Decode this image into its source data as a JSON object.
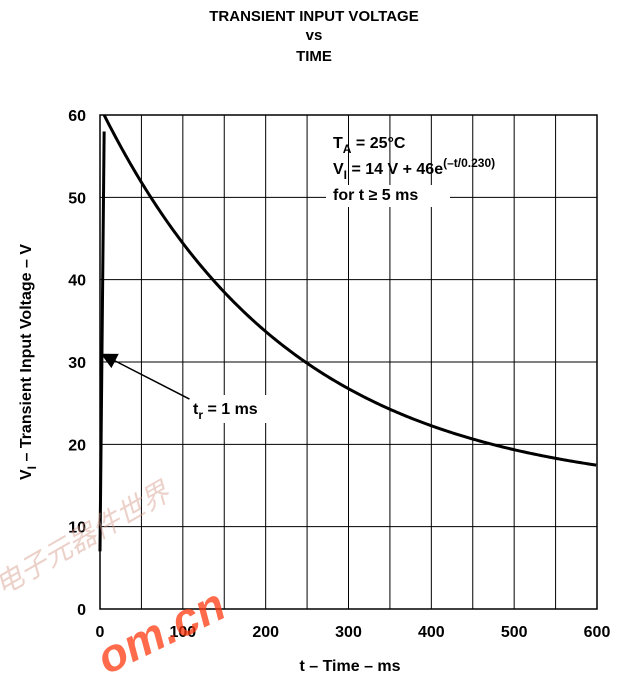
{
  "chart_data": {
    "type": "line",
    "title_lines": [
      "TRANSIENT INPUT VOLTAGE",
      "vs",
      "TIME"
    ],
    "xlabel": "t – Time – ms",
    "ylabel": {
      "main": "V",
      "sub": "I",
      "rest": " – Transient Input Voltage – V"
    },
    "xlim": [
      0,
      600
    ],
    "ylim": [
      0,
      60
    ],
    "x_ticks": [
      0,
      100,
      200,
      300,
      400,
      500,
      600
    ],
    "x_tick_labels": [
      "0",
      "100",
      "200",
      "300",
      "400",
      "500",
      "600"
    ],
    "y_ticks": [
      0,
      10,
      20,
      30,
      40,
      50,
      60
    ],
    "y_tick_labels": [
      "0",
      "10",
      "20",
      "30",
      "40",
      "50",
      "60"
    ],
    "grid": true,
    "grid_x_step": 50,
    "grid_y_step": 10,
    "series": [
      {
        "kind": "rise",
        "points": [
          [
            0,
            7
          ],
          [
            5,
            58
          ]
        ]
      },
      {
        "kind": "decay",
        "formula": {
          "offset": 14,
          "amplitude": 46,
          "tau_s": 0.23,
          "t_start_ms": 5
        },
        "x_range": [
          5,
          600
        ]
      }
    ],
    "annotations": {
      "ta": {
        "main": "T",
        "sub": "A",
        "rest": " = 25°C"
      },
      "vi": {
        "main": "V",
        "sub": "I",
        "rest": " = 14 V + 46e",
        "sup": "(–t/0.230)"
      },
      "cond": "for t ≥ 5 ms",
      "tr": {
        "main": "t",
        "sub": "r",
        "rest": " = 1 ms"
      }
    },
    "tr_arrow": {
      "from_data": [
        108,
        25.5
      ],
      "to_data": [
        1,
        31
      ]
    }
  },
  "watermark": {
    "text": "om.cn",
    "cjk": "电子元器件世界",
    "color": "#ff3a10"
  }
}
